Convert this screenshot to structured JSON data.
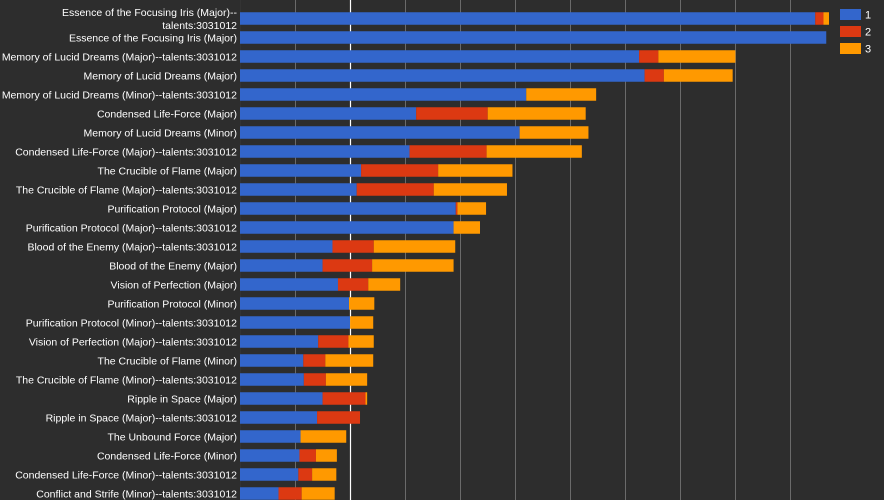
{
  "chart_data": {
    "type": "bar",
    "orientation": "horizontal",
    "stacked": true,
    "title": "",
    "xlabel": "",
    "ylabel": "",
    "xlim": [
      0,
      0.107
    ],
    "grid": true,
    "legend_position": "top-right",
    "colors": [
      "#3366cc",
      "#dc3912",
      "#ff9900"
    ],
    "categories": [
      [
        "Essence of the Focusing Iris (Major)--",
        "talents:3031012"
      ],
      [
        "Essence of the Focusing Iris (Major)"
      ],
      [
        "Memory of Lucid Dreams (Major)--talents:3031012"
      ],
      [
        "Memory of Lucid Dreams (Major)"
      ],
      [
        "Memory of Lucid Dreams (Minor)--talents:3031012"
      ],
      [
        "Condensed Life-Force (Major)"
      ],
      [
        "Memory of Lucid Dreams (Minor)"
      ],
      [
        "Condensed Life-Force (Major)--talents:3031012"
      ],
      [
        "The Crucible of Flame (Major)"
      ],
      [
        "The Crucible of Flame (Major)--talents:3031012"
      ],
      [
        "Purification Protocol (Major)"
      ],
      [
        "Purification Protocol (Major)--talents:3031012"
      ],
      [
        "Blood of the Enemy (Major)--talents:3031012"
      ],
      [
        "Blood of the Enemy (Major)"
      ],
      [
        "Vision of Perfection (Major)"
      ],
      [
        "Purification Protocol (Minor)"
      ],
      [
        "Purification Protocol (Minor)--talents:3031012"
      ],
      [
        "Vision of Perfection (Major)--talents:3031012"
      ],
      [
        "The Crucible of Flame (Minor)"
      ],
      [
        "The Crucible of Flame (Minor)--talents:3031012"
      ],
      [
        "Ripple in Space (Major)"
      ],
      [
        "Ripple in Space (Major)--talents:3031012"
      ],
      [
        "The Unbound Force (Major)"
      ],
      [
        "Condensed Life-Force (Minor)"
      ],
      [
        "Condensed Life-Force (Minor)--talents:3031012"
      ],
      [
        "Conflict and Strife (Minor)--talents:3031012"
      ]
    ],
    "series": [
      {
        "name": "1",
        "values": [
          0.1045,
          0.1065,
          0.0725,
          0.0735,
          0.052,
          0.032,
          0.0508,
          0.0308,
          0.022,
          0.0212,
          0.0392,
          0.0388,
          0.0168,
          0.015,
          0.0178,
          0.0198,
          0.02,
          0.0142,
          0.0115,
          0.0116,
          0.015,
          0.014,
          0.011,
          0.0108,
          0.0106,
          0.007
        ]
      },
      {
        "name": "2",
        "values": [
          0.0015,
          0,
          0.0035,
          0.0035,
          0,
          0.013,
          0,
          0.014,
          0.014,
          0.014,
          0.0003,
          0,
          0.0075,
          0.009,
          0.0055,
          0,
          0,
          0.0055,
          0.004,
          0.004,
          0.0078,
          0.0078,
          0,
          0.003,
          0.0025,
          0.0042
        ]
      },
      {
        "name": "3",
        "values": [
          0.001,
          0,
          0.014,
          0.0125,
          0.0127,
          0.0178,
          0.0125,
          0.0173,
          0.0135,
          0.0133,
          0.0052,
          0.0048,
          0.0148,
          0.0148,
          0.0058,
          0.0046,
          0.0042,
          0.0046,
          0.0087,
          0.0075,
          0.0003,
          0,
          0.0083,
          0.0038,
          0.0044,
          0.006
        ]
      }
    ]
  }
}
